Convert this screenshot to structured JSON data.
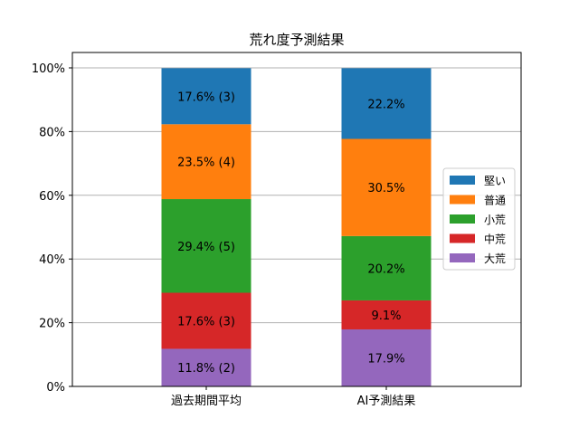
{
  "chart_data": {
    "type": "bar",
    "stacked": true,
    "title": "荒れ度予測結果",
    "xlabel": "",
    "ylabel": "",
    "categories": [
      "過去期間平均",
      "AI予測結果"
    ],
    "ylim": [
      0,
      100
    ],
    "yticks": [
      0,
      20,
      40,
      60,
      80,
      100
    ],
    "ytick_format": "{v}%",
    "grid": "horizontal",
    "legend_position": "right",
    "series": [
      {
        "name": "大荒",
        "color": "#9467bd",
        "values": [
          11.8,
          17.9
        ],
        "labels": [
          "11.8% (2)",
          "17.9%"
        ]
      },
      {
        "name": "中荒",
        "color": "#d62728",
        "values": [
          17.6,
          9.1
        ],
        "labels": [
          "17.6% (3)",
          "9.1%"
        ]
      },
      {
        "name": "小荒",
        "color": "#2ca02c",
        "values": [
          29.4,
          20.2
        ],
        "labels": [
          "29.4% (5)",
          "20.2%"
        ]
      },
      {
        "name": "普通",
        "color": "#ff7f0e",
        "values": [
          23.5,
          30.5
        ],
        "labels": [
          "23.5% (4)",
          "30.5%"
        ]
      },
      {
        "name": "堅い",
        "color": "#1f77b4",
        "values": [
          17.6,
          22.2
        ],
        "labels": [
          "17.6% (3)",
          "22.2%"
        ]
      }
    ],
    "legend_order": [
      "堅い",
      "普通",
      "小荒",
      "中荒",
      "大荒"
    ]
  }
}
